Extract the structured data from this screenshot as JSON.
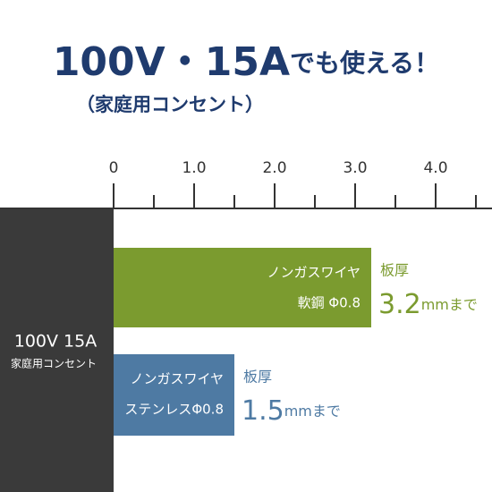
{
  "chart_data": {
    "type": "bar",
    "orientation": "horizontal",
    "title": "100V・15A",
    "title_suffix": "でも使える！",
    "subtitle": "（家庭用コンセント）",
    "source_label": [
      "100V 15A",
      "家庭用コンセント"
    ],
    "categories": [
      [
        "ノンガスワイヤ",
        "軟鋼 Φ0.8"
      ],
      [
        "ノンガスワイヤ",
        "ステンレスΦ0.8"
      ]
    ],
    "values": [
      3.2,
      1.5
    ],
    "colors": [
      "#7b9b2f",
      "#4e7aa3"
    ],
    "value_prefix": "板厚",
    "value_suffix": "mmまで",
    "xlim": [
      0,
      4.7
    ],
    "xticks": [
      0,
      {
        "value": 1,
        "label": "1.0"
      },
      {
        "value": 2,
        "label": "2.0"
      },
      {
        "value": 3,
        "label": "3.0"
      },
      {
        "value": 4,
        "label": "4.0"
      }
    ],
    "xminorticks": [
      0.5,
      1.5,
      2.5,
      3.5,
      4.5
    ]
  }
}
